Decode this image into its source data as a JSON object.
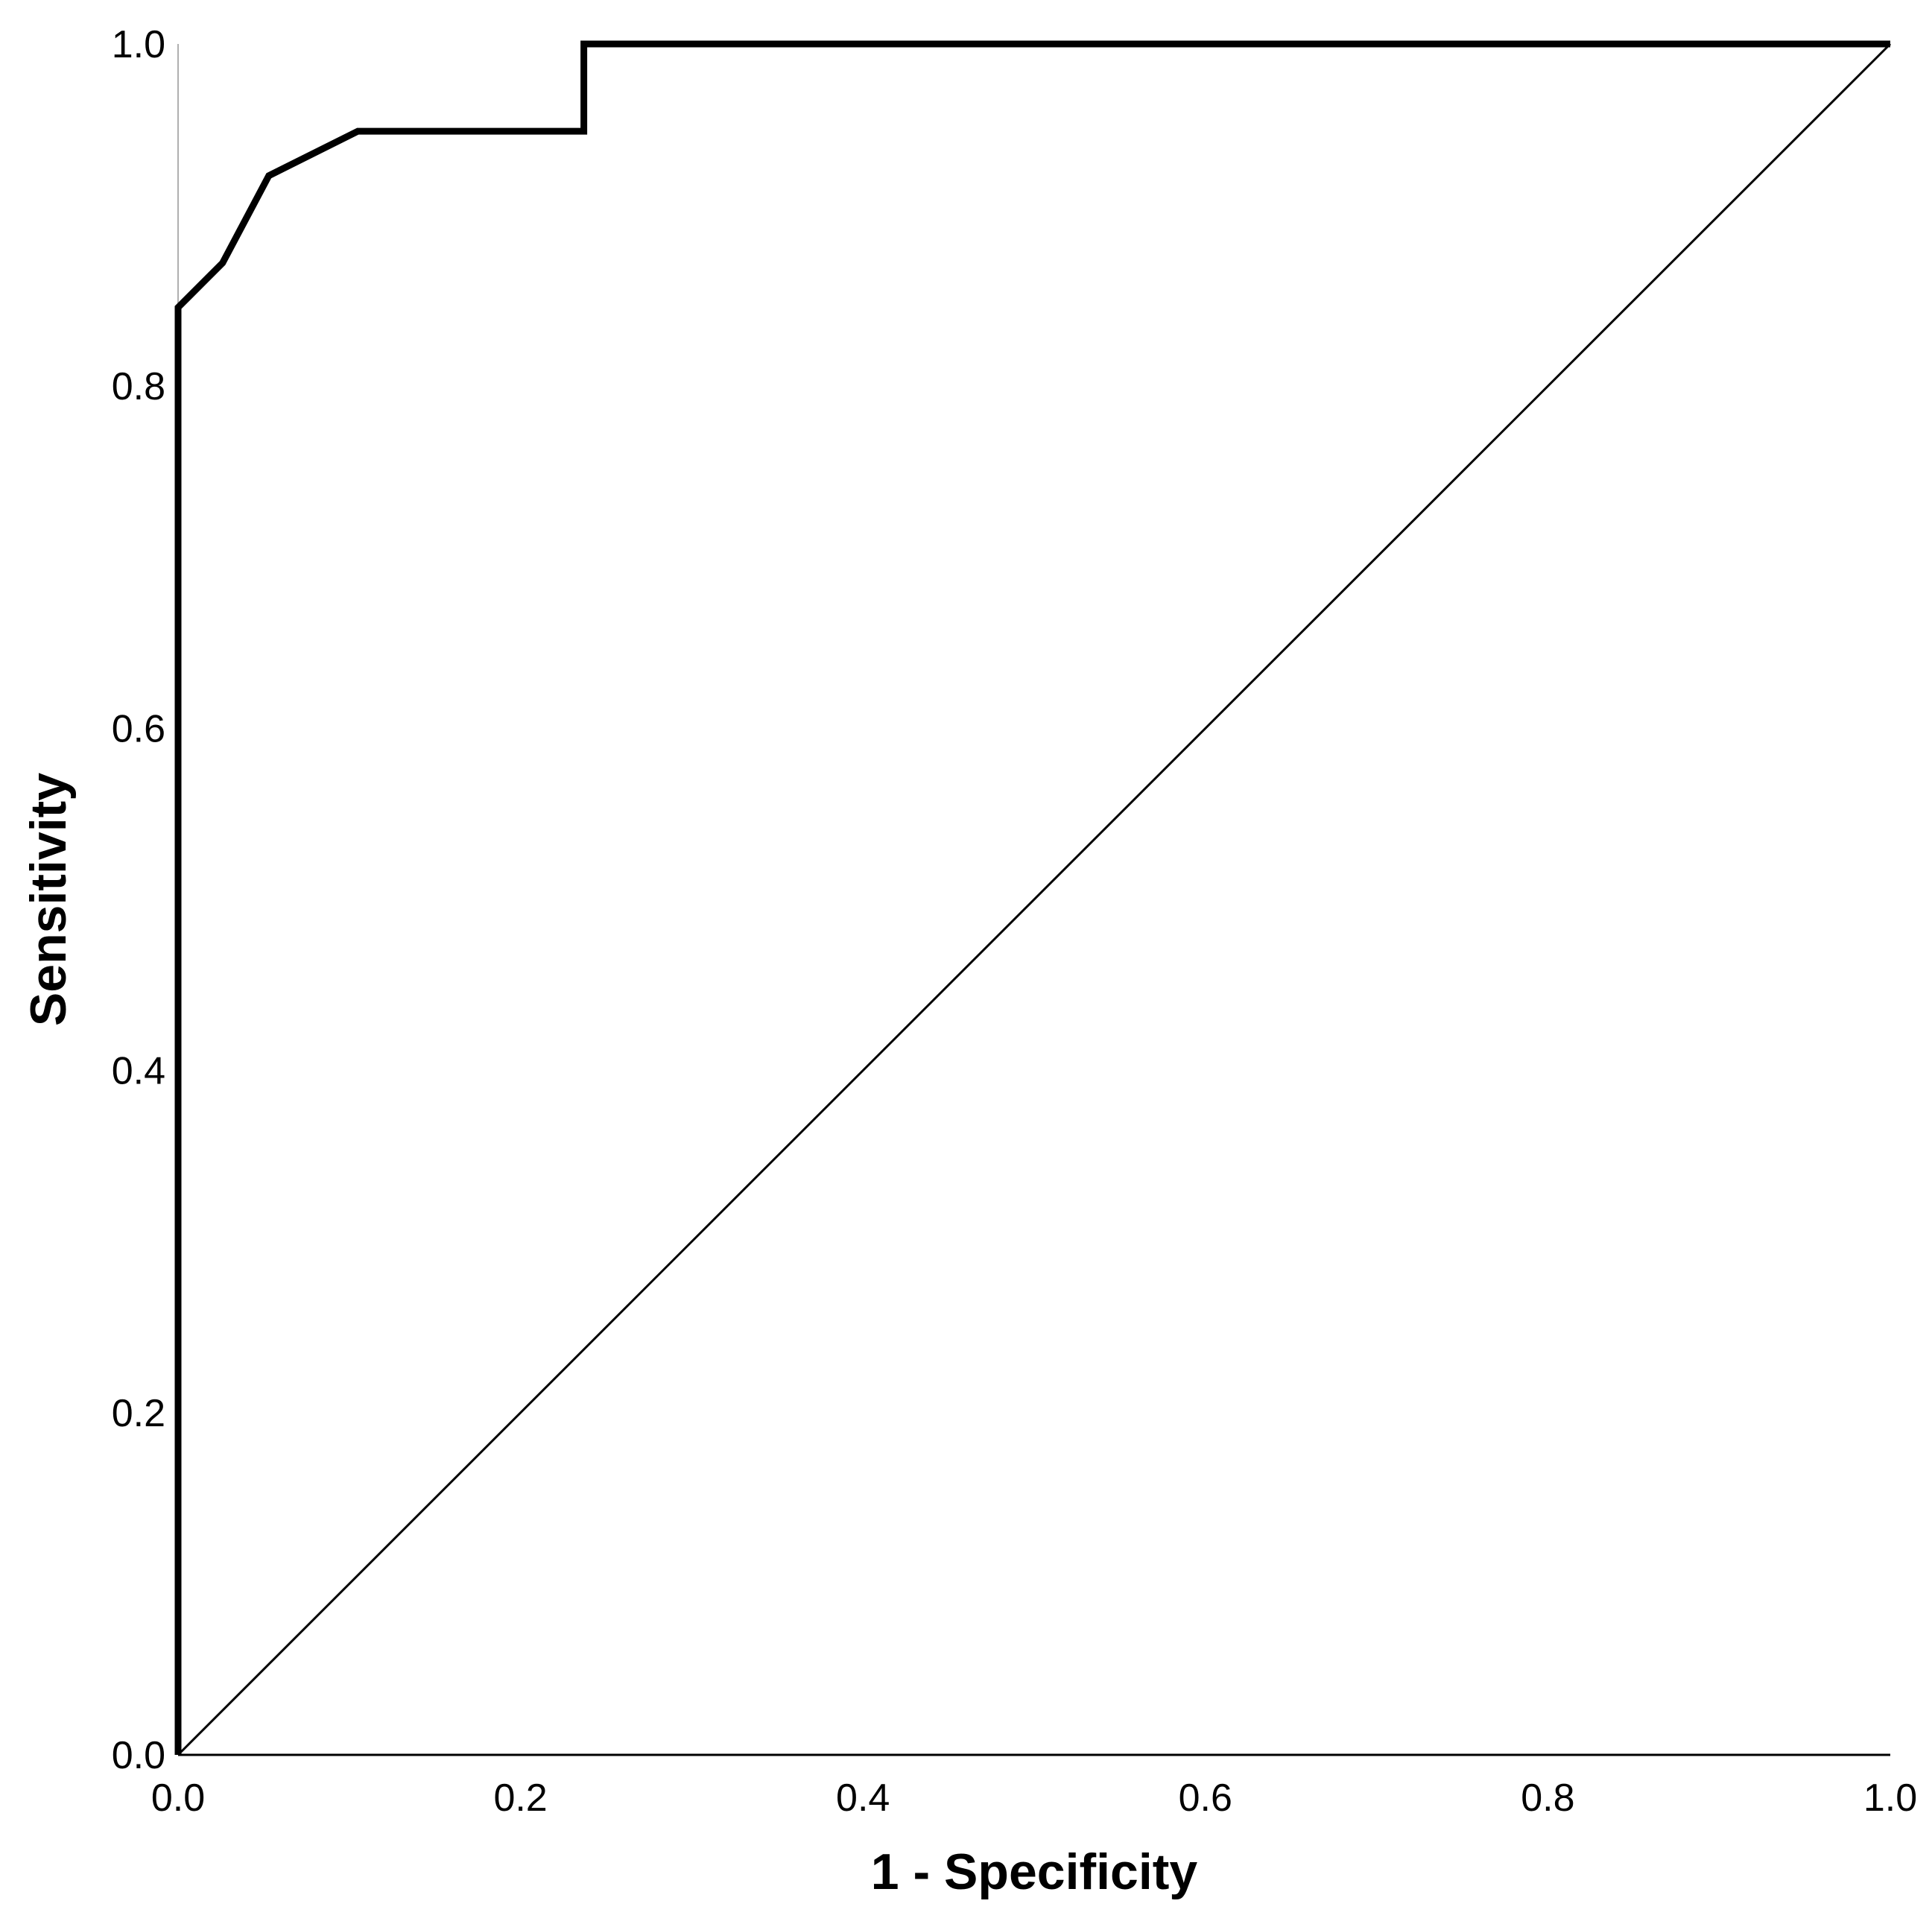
{
  "chart_data": {
    "type": "line",
    "title": "",
    "xlabel": "1 - Specificity",
    "ylabel": "Sensitivity",
    "xlim": [
      0,
      1
    ],
    "ylim": [
      0,
      1
    ],
    "xticks": [
      "0.0",
      "0.2",
      "0.4",
      "0.6",
      "0.8",
      "1.0"
    ],
    "yticks": [
      "0.0",
      "0.2",
      "0.4",
      "0.6",
      "0.8",
      "1.0"
    ],
    "grid": false,
    "legend": "none",
    "series": [
      {
        "role": "roc-curve",
        "color": "#000000",
        "x": [
          0.0,
          0.0,
          0.026,
          0.053,
          0.105,
          0.237,
          0.237,
          1.0
        ],
        "y": [
          0.0,
          0.846,
          0.872,
          0.923,
          0.949,
          0.949,
          1.0,
          1.0
        ]
      },
      {
        "role": "reference-line",
        "color": "#000000",
        "x": [
          0.0,
          1.0
        ],
        "y": [
          0.0,
          1.0
        ]
      }
    ]
  }
}
